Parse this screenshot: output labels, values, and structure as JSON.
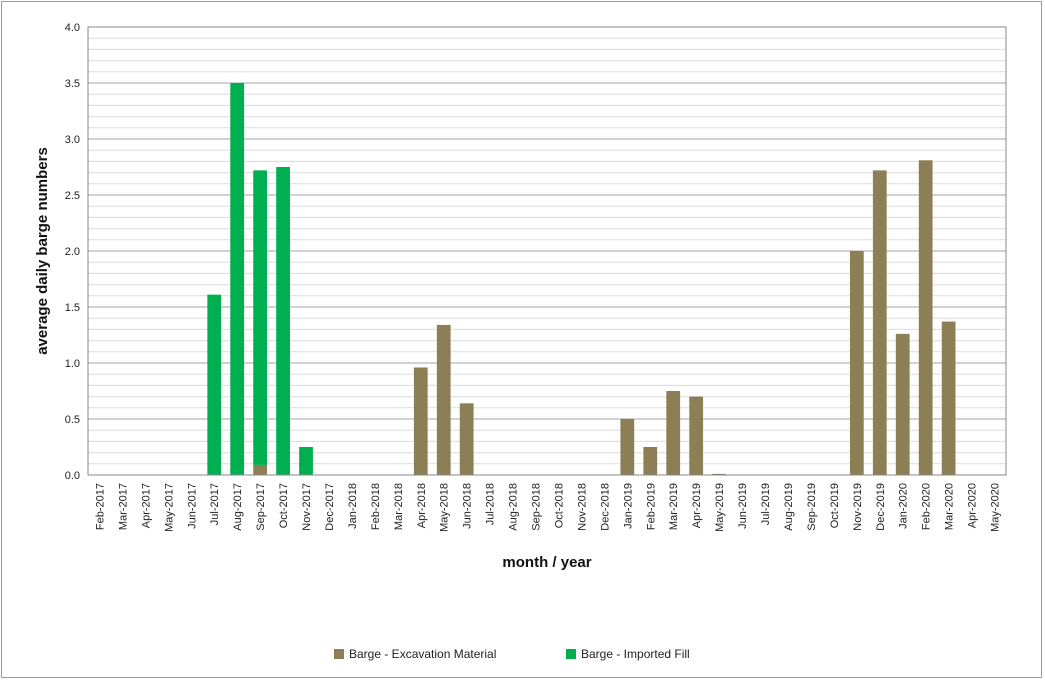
{
  "chart_data": {
    "type": "bar",
    "stacked": true,
    "xlabel": "month /  year",
    "ylabel": "average daily barge numbers",
    "ylim": [
      0,
      4.0
    ],
    "yticks": [
      "0.0",
      "0.5",
      "1.0",
      "1.5",
      "2.0",
      "2.5",
      "3.0",
      "3.5",
      "4.0"
    ],
    "grid": true,
    "legend_position": "bottom-center",
    "categories": [
      "Feb-2017",
      "Mar-2017",
      "Apr-2017",
      "May-2017",
      "Jun-2017",
      "Jul-2017",
      "Aug-2017",
      "Sep-2017",
      "Oct-2017",
      "Nov-2017",
      "Dec-2017",
      "Jan-2018",
      "Feb-2018",
      "Mar-2018",
      "Apr-2018",
      "May-2018",
      "Jun-2018",
      "Jul-2018",
      "Aug-2018",
      "Sep-2018",
      "Oct-2018",
      "Nov-2018",
      "Dec-2018",
      "Jan-2019",
      "Feb-2019",
      "Mar-2019",
      "Apr-2019",
      "May-2019",
      "Jun-2019",
      "Jul-2019",
      "Aug-2019",
      "Sep-2019",
      "Oct-2019",
      "Nov-2019",
      "Dec-2019",
      "Jan-2020",
      "Feb-2020",
      "Mar-2020",
      "Apr-2020",
      "May-2020"
    ],
    "series": [
      {
        "name": "Barge - Excavation Material",
        "color": "#8c7f55",
        "values": [
          0,
          0,
          0,
          0,
          0,
          0,
          0,
          0.09,
          0,
          0,
          0,
          0,
          0,
          0,
          0.96,
          1.34,
          0.64,
          0,
          0,
          0,
          0,
          0,
          0,
          0.5,
          0.25,
          0.75,
          0.7,
          0.01,
          0,
          0,
          0,
          0,
          0,
          2.0,
          2.72,
          1.26,
          2.81,
          1.37,
          0,
          0
        ]
      },
      {
        "name": "Barge - Imported Fill",
        "color": "#00b050",
        "values": [
          0,
          0,
          0,
          0,
          0,
          1.61,
          3.5,
          2.63,
          2.75,
          0.25,
          0,
          0,
          0,
          0,
          0,
          0,
          0,
          0,
          0,
          0,
          0,
          0,
          0,
          0,
          0,
          0,
          0,
          0,
          0,
          0,
          0,
          0,
          0,
          0,
          0,
          0,
          0,
          0,
          0,
          0
        ]
      }
    ]
  }
}
